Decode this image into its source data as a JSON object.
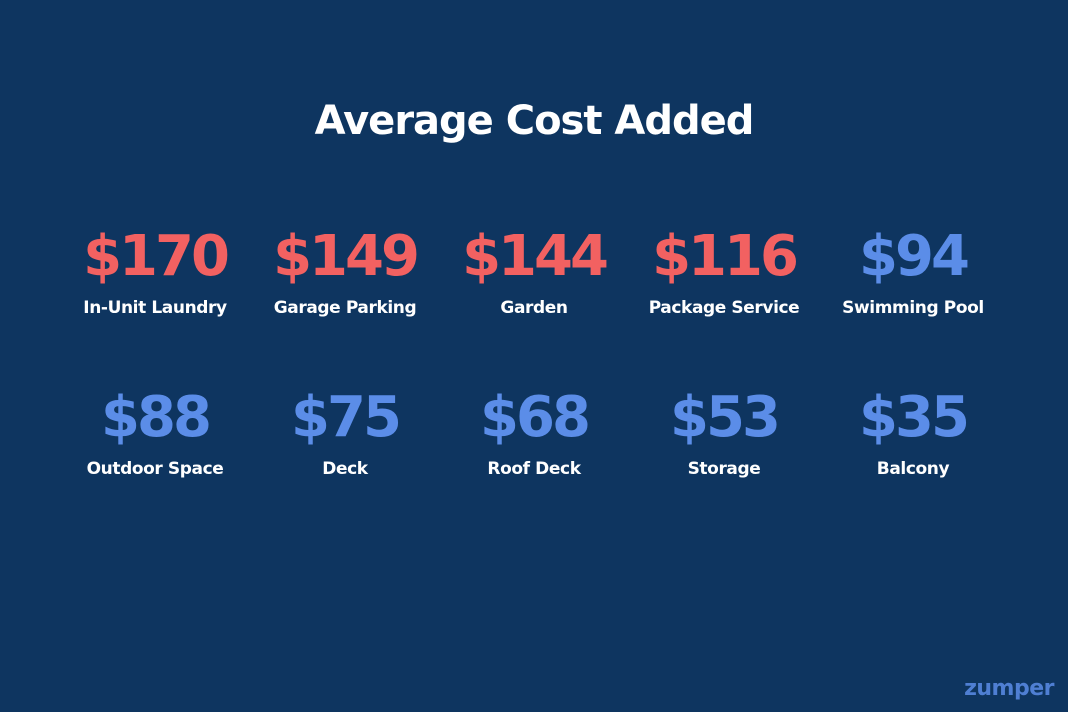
{
  "title": "Average Cost Added",
  "colors": {
    "background": "#0e3560",
    "top_amenity_value": "#f26161",
    "other_amenity_value": "#5b8de8",
    "label": "#ffffff",
    "logo": "#4f7fd3"
  },
  "rows": [
    [
      {
        "value": "$170",
        "label": "In-Unit Laundry"
      },
      {
        "value": "$149",
        "label": "Garage Parking"
      },
      {
        "value": "$144",
        "label": "Garden"
      },
      {
        "value": "$116",
        "label": "Package Service"
      },
      {
        "value": "$94",
        "label": "Swimming Pool"
      }
    ],
    [
      {
        "value": "$88",
        "label": "Outdoor Space"
      },
      {
        "value": "$75",
        "label": "Deck"
      },
      {
        "value": "$68",
        "label": "Roof Deck"
      },
      {
        "value": "$53",
        "label": "Storage"
      },
      {
        "value": "$35",
        "label": "Balcony"
      }
    ]
  ],
  "brand": "zumper"
}
